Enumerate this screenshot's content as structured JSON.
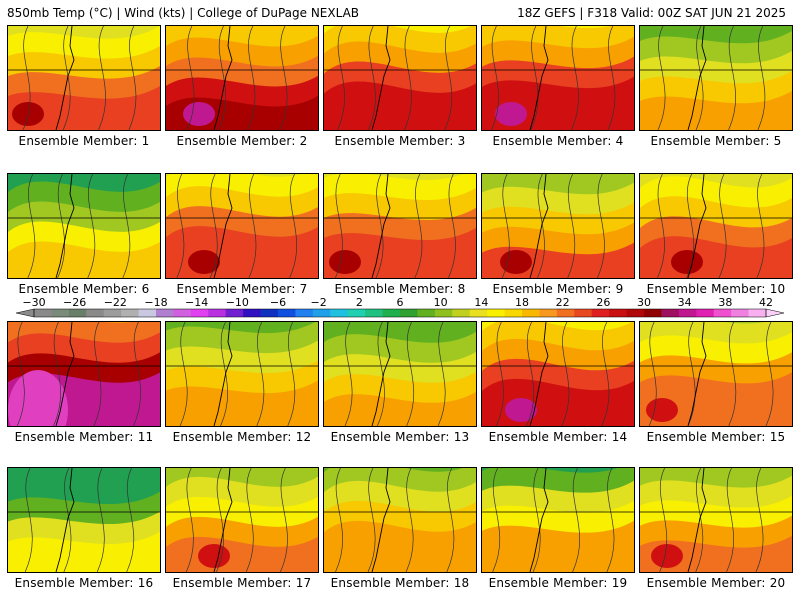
{
  "header": {
    "left": "850mb Temp (°C) | Wind (kts) | College of DuPage NEXLAB",
    "right": "18Z GEFS | F318 Valid: 00Z SAT JUN 21 2025"
  },
  "members": [
    {
      "label": "Ensemble Member: 1",
      "palette": "warm",
      "mean": 20
    },
    {
      "label": "Ensemble Member: 2",
      "palette": "warm",
      "mean": 24
    },
    {
      "label": "Ensemble Member: 3",
      "palette": "mixed",
      "mean": 22
    },
    {
      "label": "Ensemble Member: 4",
      "palette": "warm",
      "mean": 22
    },
    {
      "label": "Ensemble Member: 5",
      "palette": "cool",
      "mean": 16
    },
    {
      "label": "Ensemble Member: 6",
      "palette": "mixed",
      "mean": 14
    },
    {
      "label": "Ensemble Member: 7",
      "palette": "warm",
      "mean": 20
    },
    {
      "label": "Ensemble Member: 8",
      "palette": "warm",
      "mean": 20
    },
    {
      "label": "Ensemble Member: 9",
      "palette": "warm",
      "mean": 19
    },
    {
      "label": "Ensemble Member: 10",
      "palette": "warm",
      "mean": 20
    },
    {
      "label": "Ensemble Member: 11",
      "palette": "hot",
      "mean": 26
    },
    {
      "label": "Ensemble Member: 12",
      "palette": "mixed",
      "mean": 16
    },
    {
      "label": "Ensemble Member: 13",
      "palette": "mixed",
      "mean": 16
    },
    {
      "label": "Ensemble Member: 14",
      "palette": "warm",
      "mean": 22
    },
    {
      "label": "Ensemble Member: 15",
      "palette": "warm",
      "mean": 18
    },
    {
      "label": "Ensemble Member: 16",
      "palette": "cool",
      "mean": 12
    },
    {
      "label": "Ensemble Member: 17",
      "palette": "warm",
      "mean": 18
    },
    {
      "label": "Ensemble Member: 18",
      "palette": "mixed",
      "mean": 16
    },
    {
      "label": "Ensemble Member: 19",
      "palette": "mixed",
      "mean": 15
    },
    {
      "label": "Ensemble Member: 20",
      "palette": "warm",
      "mean": 18
    }
  ],
  "colorbar": {
    "ticks": [
      "-30",
      "-26",
      "-22",
      "-18",
      "-14",
      "-10",
      "-6",
      "-2",
      "2",
      "6",
      "10",
      "14",
      "18",
      "22",
      "26",
      "30",
      "34",
      "38",
      "42"
    ],
    "colors": [
      "#8a8a8a",
      "#7b8b7b",
      "#6a7f6a",
      "#8a8a8a",
      "#9c9c9c",
      "#b0b0b0",
      "#c8c8e0",
      "#b07fd0",
      "#d060e0",
      "#e040f0",
      "#b830e0",
      "#7020d0",
      "#3010c0",
      "#1030c0",
      "#1050e0",
      "#2080f0",
      "#20a0e8",
      "#20c0e0",
      "#20d0b0",
      "#20c080",
      "#20b050",
      "#30a030",
      "#60b020",
      "#90c020",
      "#c0d020",
      "#e8e020",
      "#f8f000",
      "#f8d800",
      "#f8b800",
      "#f89820",
      "#f07020",
      "#e84820",
      "#e02020",
      "#c81010",
      "#b00808",
      "#900000",
      "#a01060",
      "#c01890",
      "#e020b0",
      "#f050d0",
      "#f080e0",
      "#f8b0f0"
    ]
  }
}
